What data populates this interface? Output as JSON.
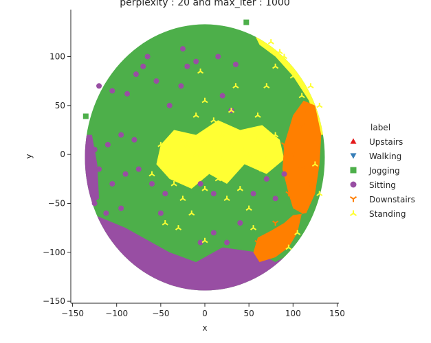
{
  "chart_data": {
    "type": "scatter",
    "title": "perplexity : 20 and max_iter : 1000",
    "xlabel": "x",
    "ylabel": "y",
    "xlim": [
      -152,
      152
    ],
    "ylim": [
      -152,
      148
    ],
    "xticks": [
      -150,
      -100,
      -50,
      0,
      50,
      100,
      150
    ],
    "yticks": [
      -150,
      -100,
      -50,
      0,
      50,
      100
    ],
    "grid": false,
    "legend": {
      "title": "label",
      "placement": "right"
    },
    "series": [
      {
        "name": "Upstairs",
        "color": "#e41a1c",
        "marker": "triangle-up",
        "points": []
      },
      {
        "name": "Walking",
        "color": "#377eb8",
        "marker": "triangle-down",
        "points": []
      },
      {
        "name": "Jogging",
        "color": "#4daf4a",
        "marker": "square",
        "region": {
          "shape": "disc",
          "center": [
            0,
            -3
          ],
          "radius": 136
        },
        "points": [
          [
            47,
            135
          ],
          [
            -135,
            39
          ]
        ]
      },
      {
        "name": "Sitting",
        "color": "#984ea3",
        "marker": "circle",
        "region": {
          "shape": "lower-band",
          "y_max": -75
        },
        "points": [
          [
            -120,
            70
          ],
          [
            -105,
            65
          ],
          [
            -88,
            62
          ],
          [
            -78,
            82
          ],
          [
            -55,
            75
          ],
          [
            -27,
            70
          ],
          [
            -20,
            90
          ],
          [
            -95,
            20
          ],
          [
            -110,
            10
          ],
          [
            -80,
            15
          ],
          [
            -125,
            5
          ],
          [
            -120,
            -15
          ],
          [
            -105,
            -30
          ],
          [
            -90,
            -20
          ],
          [
            -75,
            -15
          ],
          [
            -125,
            -50
          ],
          [
            -112,
            -60
          ],
          [
            -95,
            -55
          ],
          [
            -50,
            -60
          ],
          [
            -45,
            -40
          ],
          [
            -60,
            -30
          ],
          [
            -10,
            95
          ],
          [
            -25,
            108
          ],
          [
            15,
            100
          ],
          [
            35,
            92
          ],
          [
            -5,
            -90
          ],
          [
            10,
            -80
          ],
          [
            25,
            -90
          ],
          [
            40,
            -70
          ],
          [
            55,
            -40
          ],
          [
            70,
            -25
          ],
          [
            80,
            -45
          ],
          [
            90,
            -20
          ],
          [
            -5,
            -30
          ],
          [
            10,
            -40
          ],
          [
            -65,
            100
          ],
          [
            -70,
            90
          ],
          [
            -40,
            50
          ],
          [
            20,
            60
          ],
          [
            30,
            45
          ]
        ]
      },
      {
        "name": "Downstairs",
        "color": "#ff7f00",
        "marker": "tri-down",
        "region": {
          "shape": "right-band"
        },
        "points": [
          [
            90,
            10
          ],
          [
            100,
            0
          ],
          [
            110,
            -15
          ],
          [
            95,
            -40
          ],
          [
            80,
            -70
          ],
          [
            60,
            -90
          ],
          [
            75,
            -100
          ],
          [
            110,
            30
          ],
          [
            115,
            45
          ],
          [
            120,
            -30
          ]
        ]
      },
      {
        "name": "Standing",
        "color": "#ffff33",
        "marker": "tri-up",
        "region": {
          "shape": "cluster"
        },
        "points": [
          [
            -40,
            5
          ],
          [
            -30,
            -10
          ],
          [
            -20,
            10
          ],
          [
            -10,
            0
          ],
          [
            0,
            15
          ],
          [
            10,
            5
          ],
          [
            20,
            -5
          ],
          [
            30,
            10
          ],
          [
            40,
            20
          ],
          [
            50,
            0
          ],
          [
            60,
            15
          ],
          [
            70,
            -5
          ],
          [
            80,
            20
          ],
          [
            -35,
            -30
          ],
          [
            -25,
            -45
          ],
          [
            -15,
            -60
          ],
          [
            0,
            -35
          ],
          [
            15,
            -25
          ],
          [
            25,
            -45
          ],
          [
            40,
            -35
          ],
          [
            50,
            -55
          ],
          [
            -10,
            40
          ],
          [
            0,
            55
          ],
          [
            10,
            35
          ],
          [
            30,
            45
          ],
          [
            60,
            40
          ],
          [
            70,
            70
          ],
          [
            80,
            90
          ],
          [
            90,
            100
          ],
          [
            100,
            80
          ],
          [
            110,
            60
          ],
          [
            120,
            70
          ],
          [
            130,
            50
          ],
          [
            75,
            115
          ],
          [
            85,
            105
          ],
          [
            -60,
            -20
          ],
          [
            -50,
            10
          ],
          [
            35,
            70
          ],
          [
            -5,
            85
          ],
          [
            20,
            20
          ],
          [
            45,
            5
          ],
          [
            65,
            -15
          ],
          [
            -45,
            -70
          ],
          [
            -30,
            -75
          ],
          [
            0,
            -88
          ],
          [
            55,
            -75
          ],
          [
            95,
            -95
          ],
          [
            105,
            -80
          ],
          [
            130,
            -40
          ],
          [
            125,
            -10
          ]
        ]
      }
    ]
  }
}
